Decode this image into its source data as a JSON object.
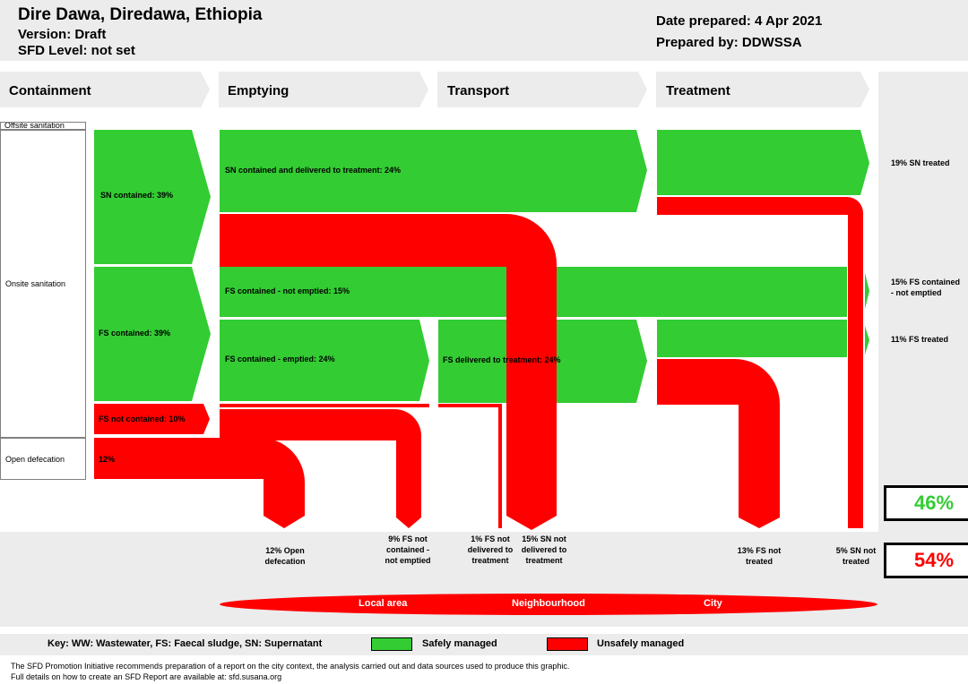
{
  "header": {
    "title": "Dire Dawa, Diredawa, Ethiopia",
    "version": "Version: Draft",
    "sfd_level": "SFD Level: not set",
    "date_prepared": "Date prepared: 4 Apr 2021",
    "prepared_by": "Prepared by: DDWSSA"
  },
  "stages": [
    "Containment",
    "Emptying",
    "Transport",
    "Treatment"
  ],
  "containment_types": {
    "offsite": "Offsite sanitation",
    "onsite": "Onsite sanitation",
    "open": "Open defecation"
  },
  "flow_labels": {
    "sn_contained": "SN contained: 39%",
    "sn_delivered": "SN contained and delivered to treatment: 24%",
    "fs_contained": "FS contained: 39%",
    "fs_not_emptied": "FS contained - not emptied: 15%",
    "fs_emptied": "FS contained - emptied: 24%",
    "fs_delivered": "FS delivered to treatment: 24%",
    "fs_not_contained": "FS not contained: 10%",
    "open_defecation": "12%"
  },
  "outcome_labels": {
    "sn_treated": "19% SN treated",
    "fs_not_emptied": "15% FS contained - not emptied",
    "fs_treated": "11% FS treated"
  },
  "bottom_labels": {
    "open_defecation": "12% Open defecation",
    "fs_not_contained": "9% FS not contained - not emptied",
    "fs_not_delivered": "1% FS not delivered to treatment",
    "sn_not_delivered": "15% SN not delivered to treatment",
    "fs_not_treated": "13% FS not treated",
    "sn_not_treated": "5% SN not treated"
  },
  "totals": {
    "safe": "46%",
    "unsafe": "54%",
    "safe_color": "#33cc33",
    "unsafe_color": "#ff0000"
  },
  "areas": [
    "Local area",
    "Neighbourhood",
    "City"
  ],
  "key": {
    "text": "Key: WW: Wastewater, FS: Faecal sludge, SN: Supernatant",
    "safe": "Safely managed",
    "unsafe": "Unsafely managed"
  },
  "footer": {
    "line1": "The SFD Promotion Initiative recommends preparation of a report on the city context, the analysis carried out and data sources used to produce this graphic.",
    "line2": "Full details on how to create an SFD Report are available at: sfd.susana.org"
  }
}
